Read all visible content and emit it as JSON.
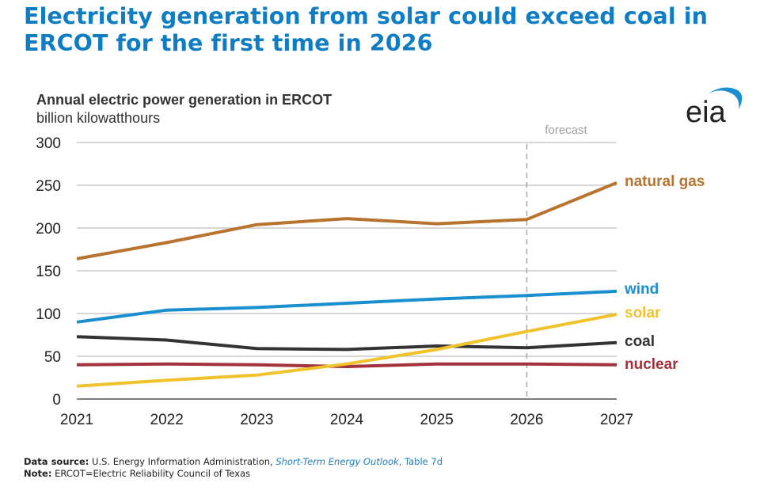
{
  "headline": "Electricity generation from solar could exceed coal in ERCOT for the first time in 2026",
  "logo_text": "eia",
  "colors": {
    "headline": "#0f7dc4",
    "natural_gas": "#b8732e",
    "wind": "#1a8fd0",
    "solar": "#f0c22c",
    "coal": "#333333",
    "nuclear": "#a3323c",
    "grid": "#bdbdbd",
    "forecast_line": "#b5b5b5"
  },
  "chart_data": {
    "type": "line",
    "title": "Annual electric power generation in ERCOT",
    "subtitle": "billion kilowatthours",
    "x": [
      2021,
      2022,
      2023,
      2024,
      2025,
      2026,
      2027
    ],
    "ylim": [
      0,
      300
    ],
    "yticks": [
      0,
      50,
      100,
      150,
      200,
      250,
      300
    ],
    "grid": true,
    "forecast_start": 2026,
    "forecast_label": "forecast",
    "legend": "inline at line ends",
    "series": [
      {
        "name": "natural gas",
        "color_key": "natural_gas",
        "values": [
          164,
          183,
          204,
          211,
          205,
          210,
          253
        ]
      },
      {
        "name": "wind",
        "color_key": "wind",
        "values": [
          90,
          104,
          107,
          112,
          117,
          121,
          126
        ]
      },
      {
        "name": "solar",
        "color_key": "solar",
        "values": [
          15,
          22,
          28,
          41,
          58,
          79,
          99
        ]
      },
      {
        "name": "coal",
        "color_key": "coal",
        "values": [
          73,
          69,
          59,
          58,
          62,
          60,
          66
        ]
      },
      {
        "name": "nuclear",
        "color_key": "nuclear",
        "values": [
          40,
          41,
          40,
          38,
          41,
          41,
          40
        ]
      }
    ]
  },
  "footer": {
    "source_label": "Data source:",
    "source_text": "U.S. Energy Information Administration,",
    "source_title": "Short-Term Energy Outlook",
    "source_suffix": ", Table 7d",
    "note_label": "Note:",
    "note_text": "ERCOT=Electric Reliability Council of Texas"
  }
}
